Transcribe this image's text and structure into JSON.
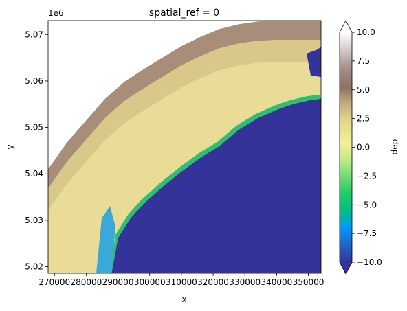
{
  "chart_data": {
    "type": "heatmap",
    "title": "spatial_ref = 0",
    "xlabel": "x",
    "ylabel": "y",
    "y_offset_label": "1e6",
    "xlim": [
      268000,
      354000
    ],
    "ylim": [
      5.0186,
      5.073
    ],
    "x_ticks": [
      270000,
      280000,
      290000,
      300000,
      310000,
      320000,
      330000,
      340000,
      350000
    ],
    "x_tick_labels": [
      "270000",
      "280000",
      "290000",
      "300000",
      "310000",
      "320000",
      "330000",
      "340000",
      "350000"
    ],
    "y_ticks": [
      5.02,
      5.03,
      5.04,
      5.05,
      5.06,
      5.07
    ],
    "y_tick_labels": [
      "5.02",
      "5.03",
      "5.04",
      "5.05",
      "5.06",
      "5.07"
    ],
    "colorbar": {
      "label": "dep",
      "vmin": -10.0,
      "vmax": 10.0,
      "extend": "both",
      "colormap": "terrain",
      "ticks": [
        -10.0,
        -7.5,
        -5.0,
        -2.5,
        0.0,
        2.5,
        5.0,
        7.5,
        10.0
      ],
      "tick_labels": [
        "−10.0",
        "−7.5",
        "−5.0",
        "−2.5",
        "0.0",
        "2.5",
        "5.0",
        "7.5",
        "10.0"
      ]
    },
    "regions": {
      "sea_value": -10.0,
      "nodata_color": "#ffffff",
      "coastline_x": [
        288000,
        290000,
        294000,
        298000,
        304000,
        310000,
        316000,
        322000,
        328000,
        334000,
        340000,
        345000,
        350000,
        354000
      ],
      "coastline_y": [
        5.0186,
        5.0262,
        5.0305,
        5.0335,
        5.0372,
        5.0405,
        5.0435,
        5.046,
        5.0495,
        5.052,
        5.0538,
        5.055,
        5.0558,
        5.0562
      ],
      "ridge_x": [
        268000,
        274000,
        280000,
        286000,
        292000,
        298000,
        304000,
        310000,
        316000,
        322000,
        328000,
        334000,
        340000,
        346000,
        354000
      ],
      "ridge_y": [
        5.041,
        5.0468,
        5.0515,
        5.0562,
        5.0598,
        5.0625,
        5.065,
        5.0675,
        5.0695,
        5.0712,
        5.0722,
        5.0728,
        5.073,
        5.073,
        5.073
      ]
    }
  }
}
